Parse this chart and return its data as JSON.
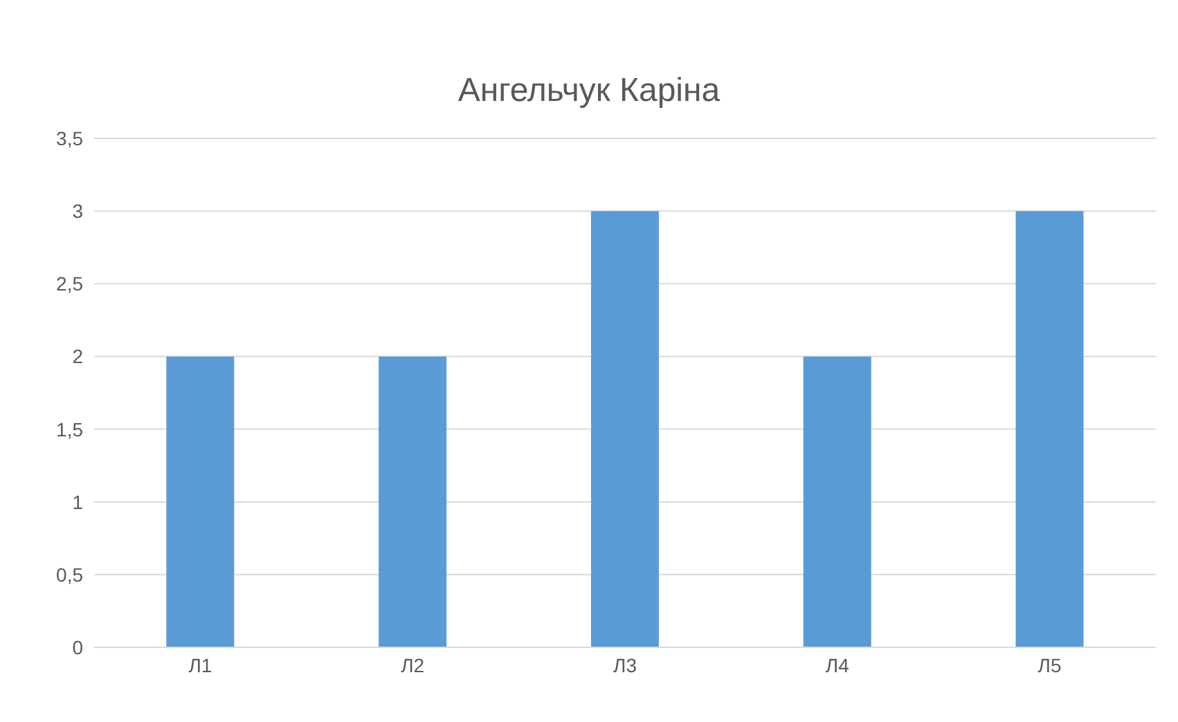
{
  "chart_data": {
    "type": "bar",
    "title": "Ангельчук Каріна",
    "categories": [
      "Л1",
      "Л2",
      "Л3",
      "Л4",
      "Л5"
    ],
    "values": [
      2,
      2,
      3,
      2,
      3
    ],
    "color": "#5b9bd5",
    "ylim": [
      0,
      3.5
    ],
    "yticks": [
      0,
      {
        "value": 0.5,
        "label": "0,5"
      },
      1,
      {
        "value": 1.5,
        "label": "1,5"
      },
      2,
      {
        "value": 2.5,
        "label": "2,5"
      },
      3,
      {
        "value": 3.5,
        "label": "3,5"
      }
    ],
    "grid": "y",
    "legend": false
  }
}
